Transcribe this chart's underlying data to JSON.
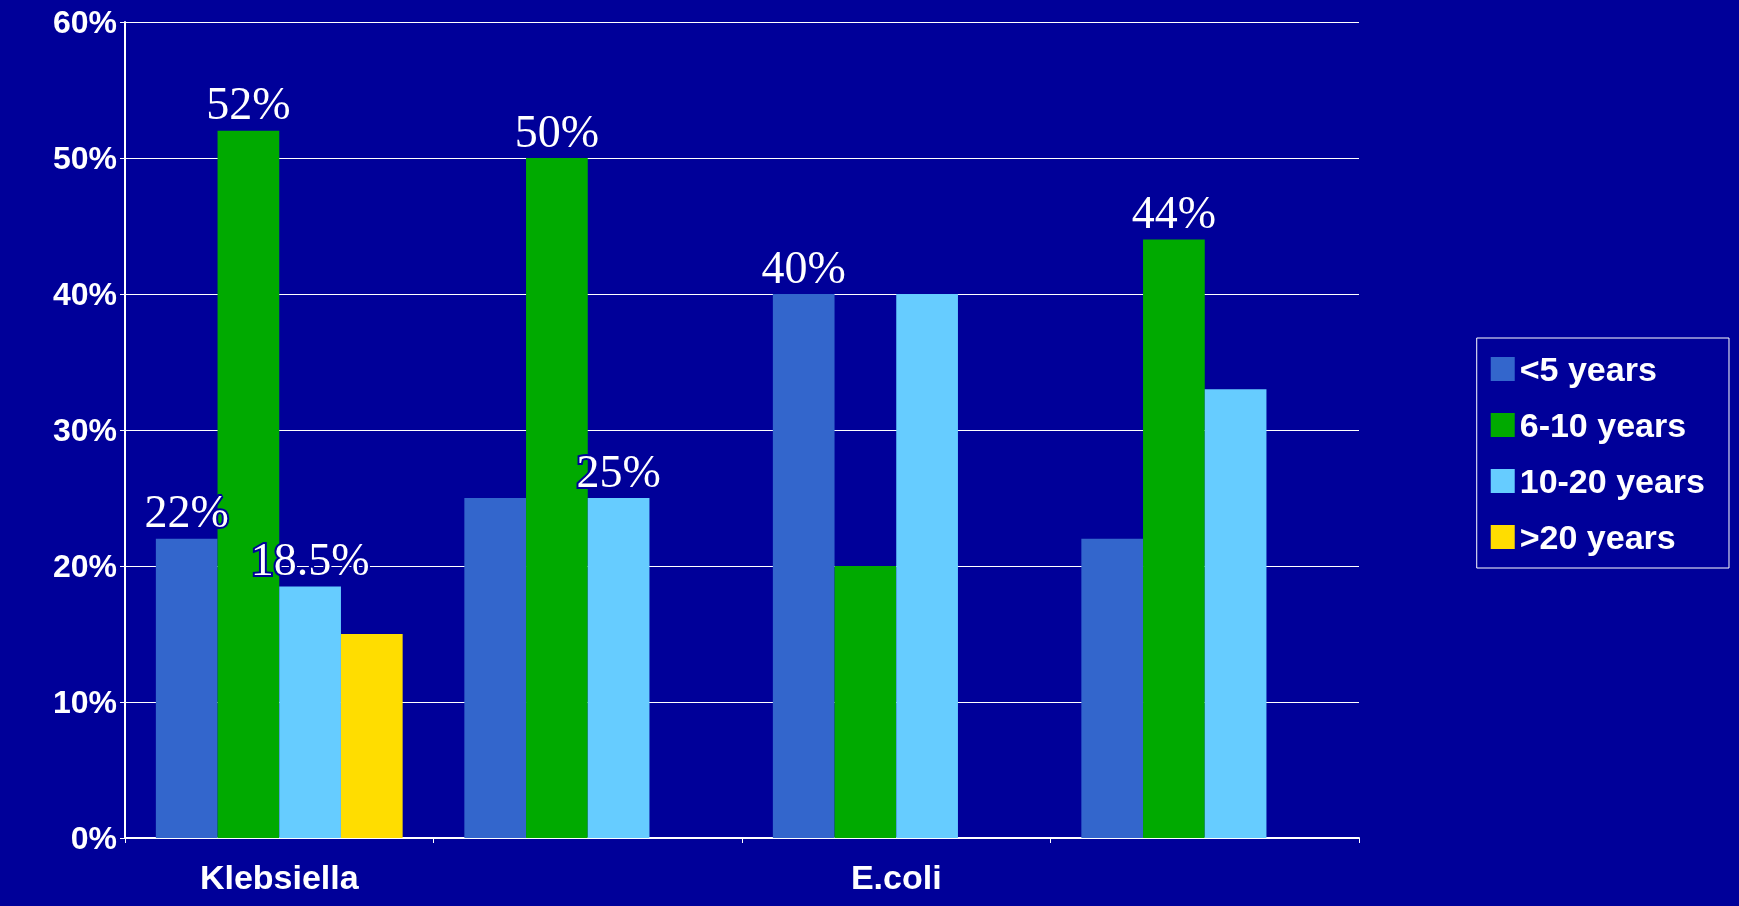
{
  "chart_data": {
    "type": "bar",
    "categories": [
      "Klebsiella",
      null,
      "E.coli",
      null
    ],
    "series": [
      {
        "name": "<5 years",
        "color": "#3366cc",
        "values": [
          22,
          25,
          40,
          22
        ],
        "value_labels": [
          "22%",
          null,
          "40%",
          null
        ]
      },
      {
        "name": "6-10 years",
        "color": "#00aa00",
        "values": [
          52,
          50,
          20,
          44
        ],
        "value_labels": [
          "52%",
          "50%",
          null,
          "44%"
        ]
      },
      {
        "name": "10-20 years",
        "color": "#66ccff",
        "values": [
          18.5,
          25,
          40,
          33
        ],
        "value_labels": [
          "18.5%",
          "25%",
          null,
          null
        ]
      },
      {
        "name": ">20 years",
        "color": "#ffdd00",
        "values": [
          15,
          0,
          0,
          0
        ]
      }
    ],
    "ylim": [
      0,
      60
    ],
    "yticks": [
      {
        "value": 0,
        "label": "0%"
      },
      {
        "value": 10,
        "label": "10%"
      },
      {
        "value": 20,
        "label": "20%"
      },
      {
        "value": 30,
        "label": "30%"
      },
      {
        "value": 40,
        "label": "40%"
      },
      {
        "value": 50,
        "label": "50%"
      },
      {
        "value": 60,
        "label": "60%"
      }
    ],
    "grid": "y",
    "legend": "right"
  }
}
